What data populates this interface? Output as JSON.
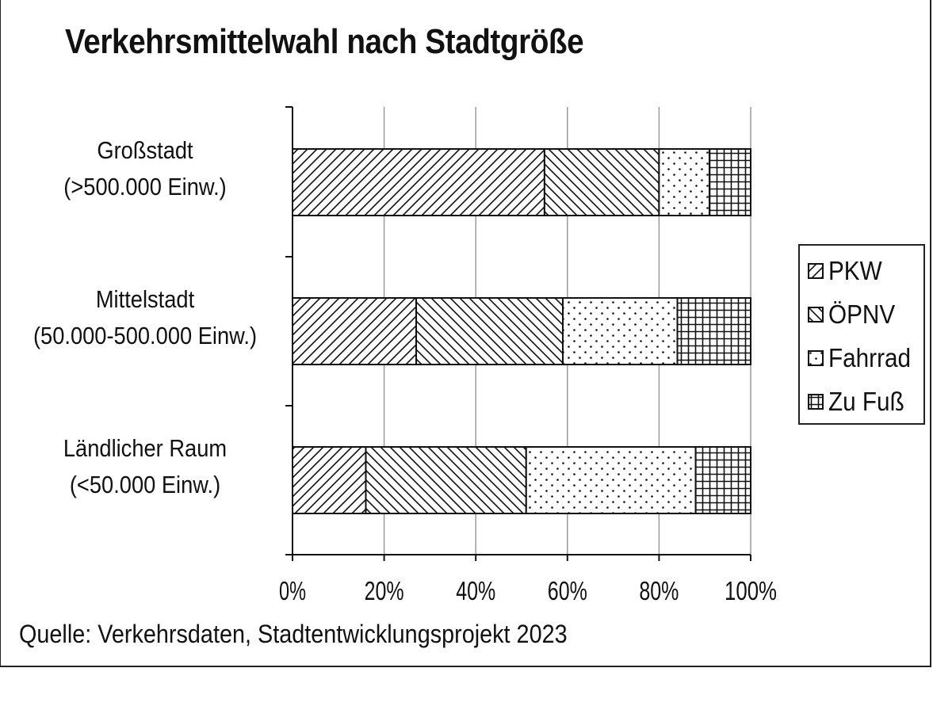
{
  "title": "Verkehrsmittelwahl nach Stadtgröße",
  "source": "Quelle: Verkehrsdaten, Stadtentwicklungsprojekt 2023",
  "chart_data": {
    "type": "bar",
    "orientation": "horizontal",
    "stacked": true,
    "title": "Verkehrsmittelwahl nach Stadtgröße",
    "categories": [
      [
        "Großstadt",
        "(>500.000 Einw.)"
      ],
      [
        "Mittelstadt",
        "(50.000-500.000 Einw.)"
      ],
      [
        "Ländlicher Raum",
        "(<50.000 Einw.)"
      ]
    ],
    "series": [
      {
        "name": "PKW",
        "pattern": "diagonal-up",
        "values": [
          55,
          27,
          16
        ]
      },
      {
        "name": "ÖPNV",
        "pattern": "diagonal-down",
        "values": [
          25,
          32,
          35
        ]
      },
      {
        "name": "Fahrrad",
        "pattern": "dots",
        "values": [
          11,
          25,
          37
        ]
      },
      {
        "name": "Zu Fuß",
        "pattern": "grid",
        "values": [
          9,
          16,
          12
        ]
      }
    ],
    "xlim": [
      0,
      100
    ],
    "xticks": [
      "0%",
      "20%",
      "40%",
      "60%",
      "80%",
      "100%"
    ],
    "grid": "vertical",
    "legend_position": "right"
  }
}
